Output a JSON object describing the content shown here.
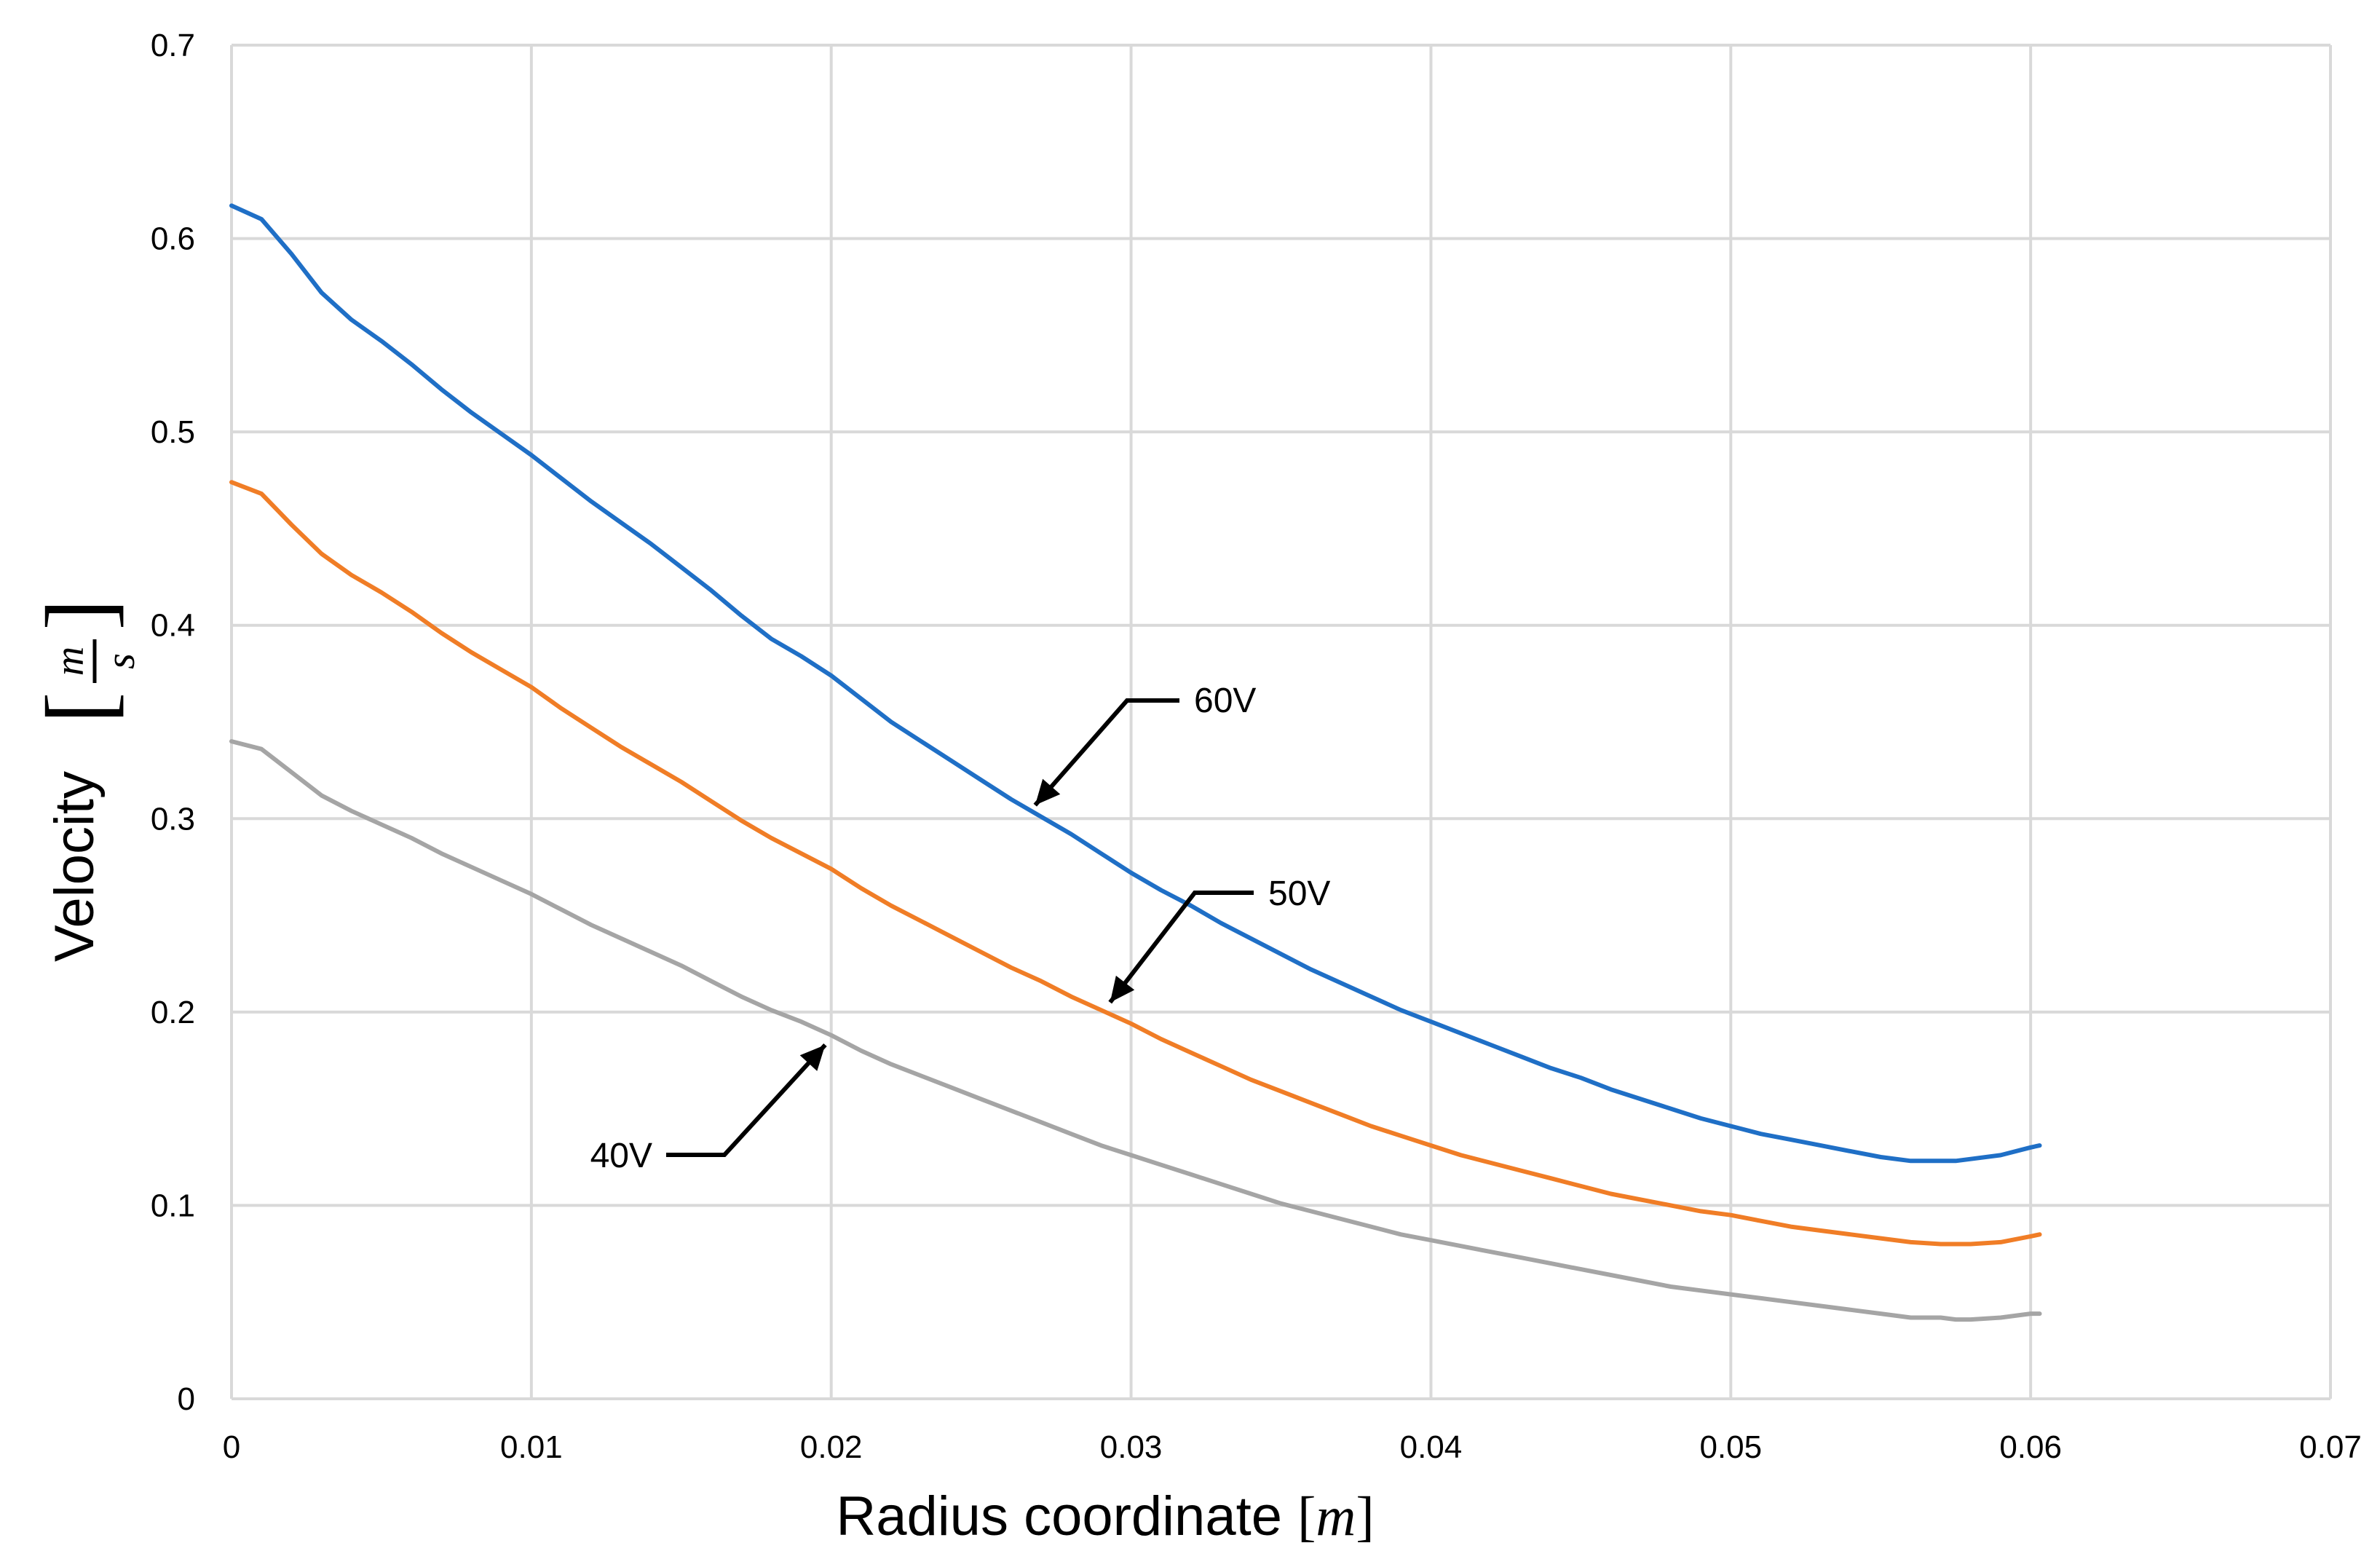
{
  "chart_data": {
    "type": "line",
    "title": "",
    "xlabel": "Radius coordinate",
    "xlabel_unit": "m",
    "ylabel": "Velocity",
    "ylabel_unit_num": "m",
    "ylabel_unit_den": "s",
    "xlim": [
      0,
      0.07
    ],
    "ylim": [
      0,
      0.7
    ],
    "xticks": [
      "0",
      "0.01",
      "0.02",
      "0.03",
      "0.04",
      "0.05",
      "0.06",
      "0.07"
    ],
    "yticks": [
      "0",
      "0.1",
      "0.2",
      "0.3",
      "0.4",
      "0.5",
      "0.6",
      "0.7"
    ],
    "grid": true,
    "legend": "none",
    "x": [
      0,
      0.001,
      0.002,
      0.003,
      0.004,
      0.005,
      0.006,
      0.007,
      0.008,
      0.009,
      0.01,
      0.011,
      0.012,
      0.013,
      0.014,
      0.015,
      0.016,
      0.017,
      0.018,
      0.019,
      0.02,
      0.021,
      0.022,
      0.023,
      0.024,
      0.025,
      0.026,
      0.027,
      0.028,
      0.029,
      0.03,
      0.031,
      0.032,
      0.033,
      0.034,
      0.035,
      0.036,
      0.037,
      0.038,
      0.039,
      0.04,
      0.041,
      0.042,
      0.043,
      0.044,
      0.045,
      0.046,
      0.047,
      0.048,
      0.049,
      0.05,
      0.051,
      0.052,
      0.053,
      0.054,
      0.055,
      0.056,
      0.057,
      0.0575,
      0.058,
      0.059,
      0.06,
      0.0603
    ],
    "series": [
      {
        "name": "60V",
        "color": "#1f6fc6",
        "values": [
          0.617,
          0.61,
          0.592,
          0.572,
          0.558,
          0.547,
          0.535,
          0.522,
          0.51,
          0.499,
          0.488,
          0.476,
          0.464,
          0.453,
          0.442,
          0.43,
          0.418,
          0.405,
          0.393,
          0.384,
          0.374,
          0.362,
          0.35,
          0.34,
          0.33,
          0.32,
          0.31,
          0.301,
          0.292,
          0.282,
          0.272,
          0.263,
          0.255,
          0.246,
          0.238,
          0.23,
          0.222,
          0.215,
          0.208,
          0.201,
          0.195,
          0.189,
          0.183,
          0.177,
          0.171,
          0.166,
          0.16,
          0.155,
          0.15,
          0.145,
          0.141,
          0.137,
          0.134,
          0.131,
          0.128,
          0.125,
          0.123,
          0.123,
          0.123,
          0.124,
          0.126,
          0.13,
          0.131
        ]
      },
      {
        "name": "50V",
        "color": "#f07d26",
        "values": [
          0.474,
          0.468,
          0.452,
          0.437,
          0.426,
          0.417,
          0.407,
          0.396,
          0.386,
          0.377,
          0.368,
          0.357,
          0.347,
          0.337,
          0.328,
          0.319,
          0.309,
          0.299,
          0.29,
          0.282,
          0.274,
          0.264,
          0.255,
          0.247,
          0.239,
          0.231,
          0.223,
          0.216,
          0.208,
          0.201,
          0.194,
          0.186,
          0.179,
          0.172,
          0.165,
          0.159,
          0.153,
          0.147,
          0.141,
          0.136,
          0.131,
          0.126,
          0.122,
          0.118,
          0.114,
          0.11,
          0.106,
          0.103,
          0.1,
          0.097,
          0.095,
          0.092,
          0.089,
          0.087,
          0.085,
          0.083,
          0.081,
          0.08,
          0.08,
          0.08,
          0.081,
          0.084,
          0.085
        ]
      },
      {
        "name": "40V",
        "color": "#a5a5a5",
        "values": [
          0.34,
          0.336,
          0.324,
          0.312,
          0.304,
          0.297,
          0.29,
          0.282,
          0.275,
          0.268,
          0.261,
          0.253,
          0.245,
          0.238,
          0.231,
          0.224,
          0.216,
          0.208,
          0.201,
          0.195,
          0.188,
          0.18,
          0.173,
          0.167,
          0.161,
          0.155,
          0.149,
          0.143,
          0.137,
          0.131,
          0.126,
          0.121,
          0.116,
          0.111,
          0.106,
          0.101,
          0.097,
          0.093,
          0.089,
          0.085,
          0.082,
          0.079,
          0.076,
          0.073,
          0.07,
          0.067,
          0.064,
          0.061,
          0.058,
          0.056,
          0.054,
          0.052,
          0.05,
          0.048,
          0.046,
          0.044,
          0.042,
          0.042,
          0.041,
          0.041,
          0.042,
          0.044,
          0.044
        ]
      }
    ],
    "annotations": [
      {
        "label": "60V",
        "series": "60V",
        "target": [
          0.0268,
          0.307
        ]
      },
      {
        "label": "50V",
        "series": "50V",
        "target": [
          0.0293,
          0.205
        ]
      },
      {
        "label": "40V",
        "series": "40V",
        "target": [
          0.0198,
          0.183
        ]
      }
    ]
  }
}
